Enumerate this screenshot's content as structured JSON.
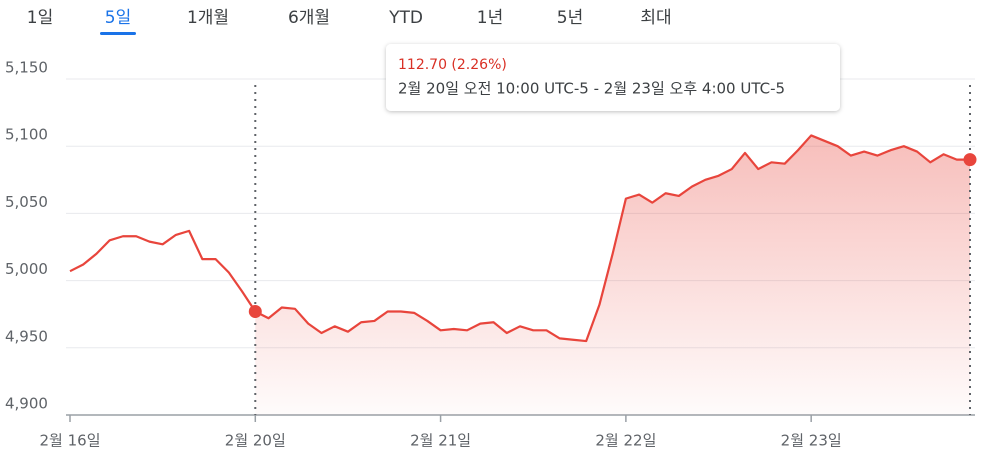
{
  "tabs": [
    "1일",
    "5일",
    "1개월",
    "6개월",
    "YTD",
    "1년",
    "5년",
    "최대"
  ],
  "selected_tab": 1,
  "chart_data": {
    "type": "line",
    "categories": [
      "2월 16일",
      null,
      null,
      null,
      null,
      null,
      null,
      null,
      null,
      null,
      null,
      null,
      null,
      null,
      "2월 20일",
      null,
      null,
      null,
      null,
      null,
      null,
      null,
      null,
      null,
      null,
      null,
      null,
      null,
      "2월 21일",
      null,
      null,
      null,
      null,
      null,
      null,
      null,
      null,
      null,
      null,
      null,
      null,
      null,
      "2월 22일",
      null,
      null,
      null,
      null,
      null,
      null,
      null,
      null,
      null,
      null,
      null,
      null,
      null,
      "2월 23일",
      null,
      null,
      null,
      null,
      null,
      null,
      null,
      null,
      null,
      null,
      null,
      null
    ],
    "values": [
      5007,
      5012,
      5020,
      5030,
      5033,
      5033,
      5029,
      5027,
      5034,
      5037,
      5016,
      5016,
      5006,
      4992,
      4977,
      4972,
      4980,
      4979,
      4968,
      4961,
      4966,
      4962,
      4969,
      4970,
      4977,
      4977,
      4976,
      4970,
      4963,
      4964,
      4963,
      4968,
      4969,
      4961,
      4966,
      4963,
      4963,
      4957,
      4956,
      4955,
      4982,
      5020,
      5061,
      5064,
      5058,
      5065,
      5063,
      5070,
      5075,
      5078,
      5083,
      5095,
      5083,
      5088,
      5087,
      5097,
      5108,
      5104,
      5100,
      5093,
      5096,
      5093,
      5097,
      5100,
      5096,
      5088,
      5094,
      5090,
      5090
    ],
    "color": "#e8453c",
    "ylim": [
      4900,
      5150
    ],
    "yticks": [
      {
        "value": 4900,
        "label": "4,900"
      },
      {
        "value": 4950,
        "label": "4,950"
      },
      {
        "value": 5000,
        "label": "5,000"
      },
      {
        "value": 5050,
        "label": "5,050"
      },
      {
        "value": 5100,
        "label": "5,100"
      },
      {
        "value": 5150,
        "label": "5,150"
      }
    ],
    "grid": true,
    "selected_range": [
      14,
      68
    ],
    "tooltip": {
      "change": "112.70 (2.26%)",
      "range": "2월 20일 오전 10:00 UTC-5 - 2월 23일 오후 4:00 UTC-5"
    }
  }
}
